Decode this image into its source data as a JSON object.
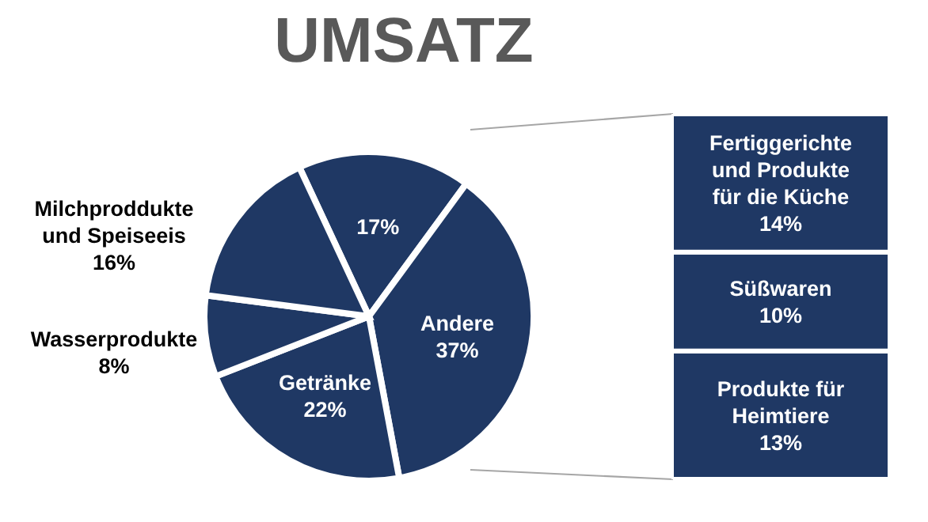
{
  "chart_data": [
    {
      "type": "pie",
      "title": "UMSATZ",
      "categories": [
        null,
        "Andere",
        "Getränke",
        "Wasserprodukte",
        "Milchproddukte und Speiseeis"
      ],
      "values": [
        17,
        37,
        22,
        8,
        16
      ],
      "value_labels": [
        "17%",
        "37%",
        "22%",
        "8%",
        "16%"
      ],
      "colors": [
        "#1f3864",
        "#1f3864",
        "#1f3864",
        "#1f3864",
        "#1f3864"
      ]
    },
    {
      "type": "bar",
      "stacked": true,
      "categories": [
        null
      ],
      "series": [
        {
          "name": "Produkte für Heimtiere",
          "color": "#1f3864",
          "values": [
            13
          ],
          "value_labels": [
            "13%"
          ]
        },
        {
          "name": "Süßwaren",
          "color": "#1f3864",
          "values": [
            10
          ],
          "value_labels": [
            "10%"
          ]
        },
        {
          "name": "Fertiggerichte und Produkte für die Küche",
          "color": "#1f3864",
          "values": [
            14
          ],
          "value_labels": [
            "14%"
          ]
        }
      ]
    }
  ]
}
